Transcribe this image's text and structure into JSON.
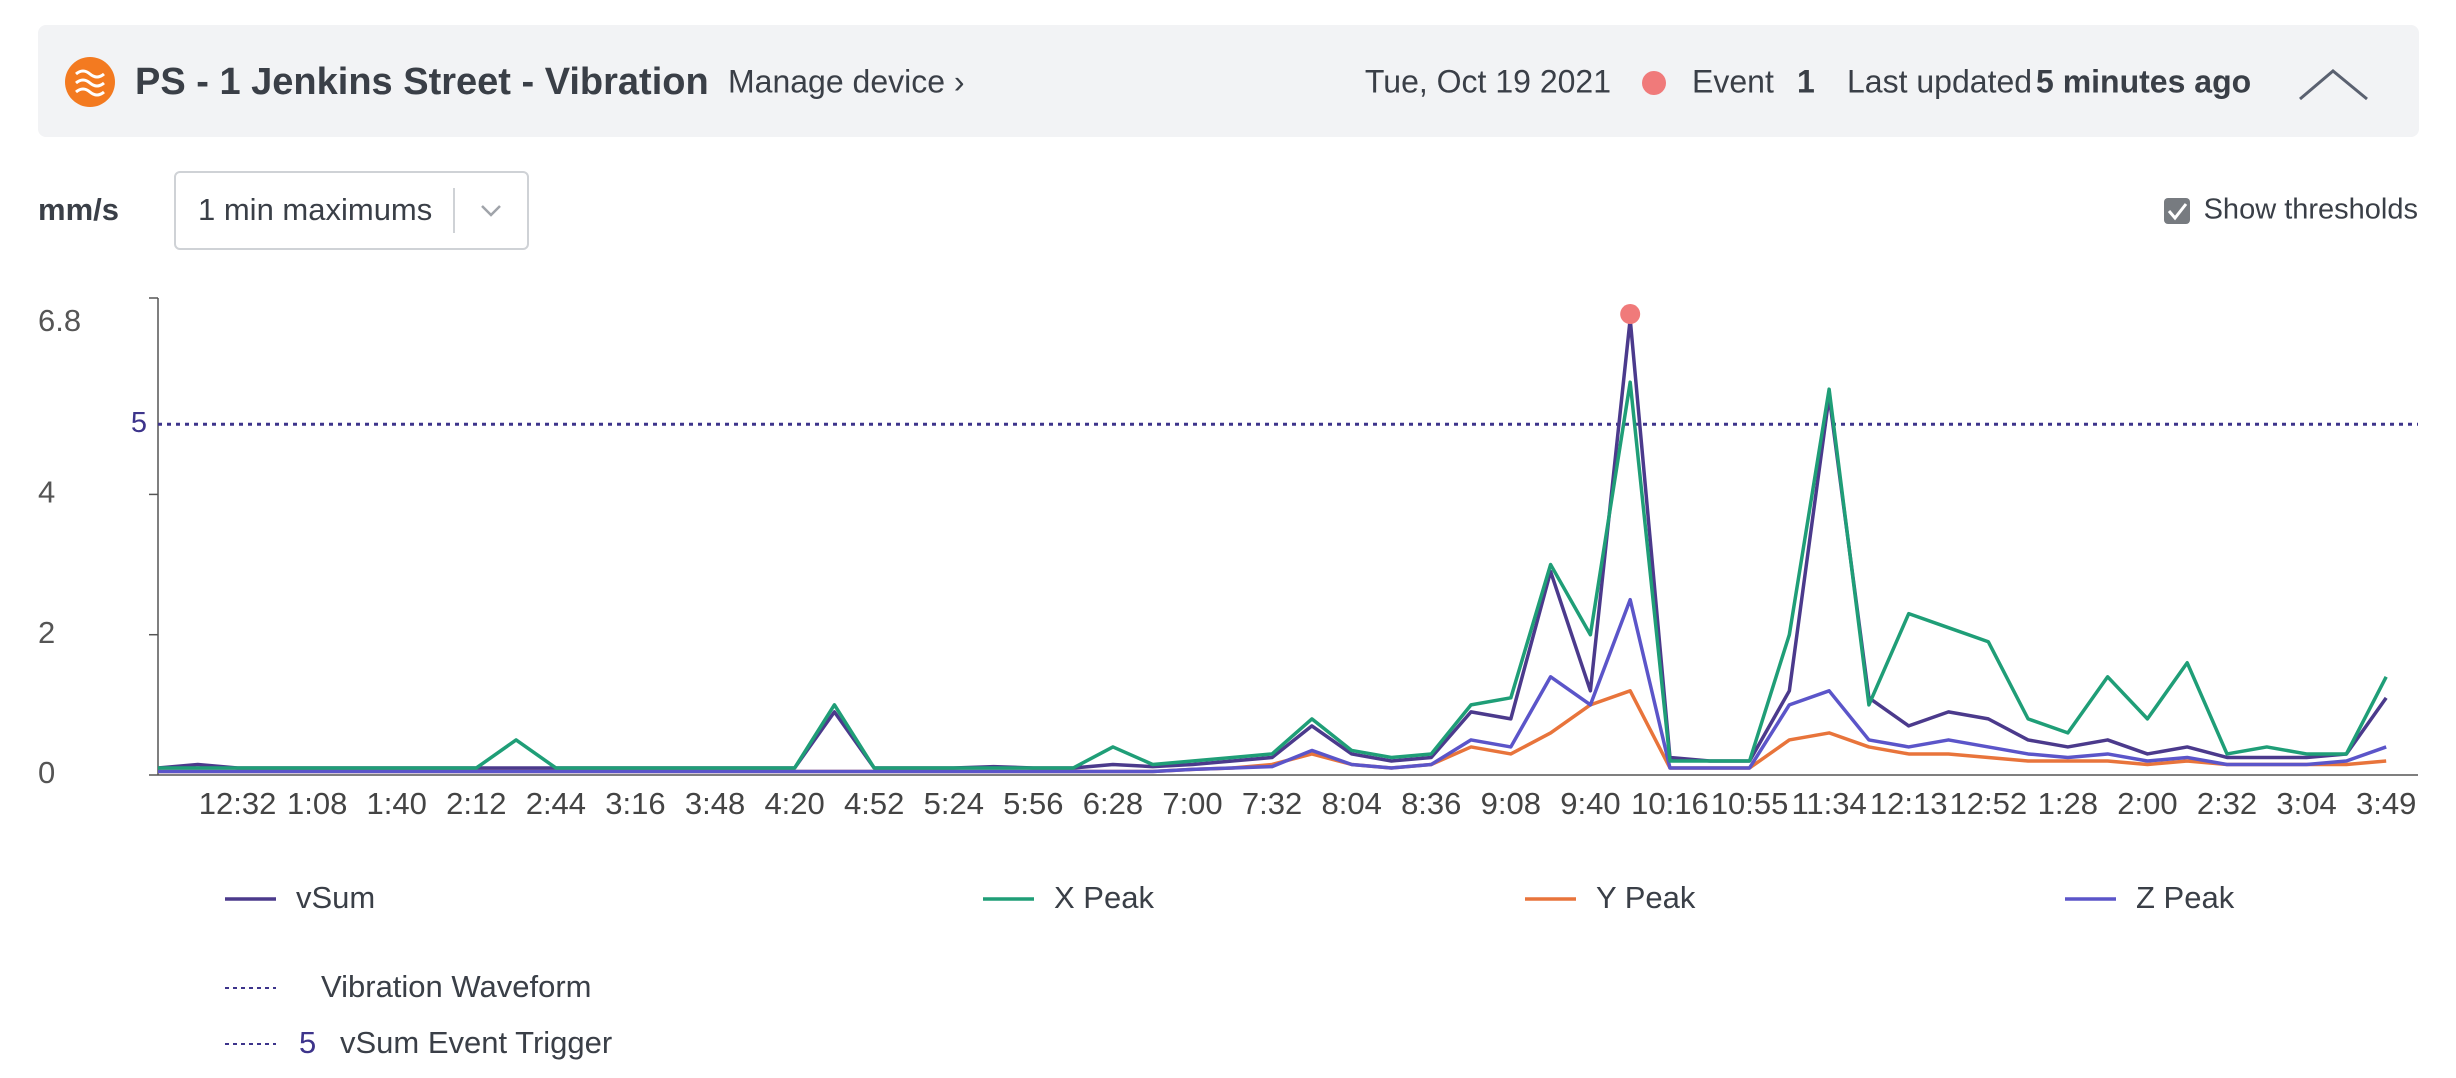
{
  "header": {
    "title": "PS - 1 Jenkins Street - Vibration",
    "link": "Manage device ›",
    "date": "Tue, Oct 19 2021",
    "event_label": "Event",
    "event_count": 1,
    "updated_label": "Last updated",
    "updated_value": "5 minutes ago"
  },
  "controls": {
    "unit": "mm/s",
    "select": "1 min maximums",
    "checkbox_label": "Show thresholds",
    "checked": true
  },
  "chart_data": {
    "type": "line",
    "categories": [
      null,
      null,
      "12:32",
      null,
      "1:08",
      null,
      "1:40",
      null,
      "2:12",
      null,
      "2:44",
      null,
      "3:16",
      null,
      "3:48",
      null,
      "4:20",
      null,
      "4:52",
      null,
      "5:24",
      null,
      "5:56",
      null,
      "6:28",
      null,
      "7:00",
      null,
      "7:32",
      null,
      "8:04",
      null,
      "8:36",
      null,
      "9:08",
      null,
      "9:40",
      null,
      "10:16",
      null,
      "10:55",
      null,
      "11:34",
      null,
      "12:13",
      null,
      "12:52",
      null,
      "1:28",
      null,
      "2:00",
      null,
      "2:32",
      null,
      "3:04",
      null,
      "3:49"
    ],
    "series": [
      {
        "name": "vSum",
        "color": "#4b3a8c",
        "values": [
          0.1,
          0.15,
          0.1,
          0.1,
          0.1,
          0.1,
          0.1,
          0.1,
          0.1,
          0.1,
          0.1,
          0.1,
          0.1,
          0.1,
          0.1,
          0.1,
          0.1,
          0.9,
          0.1,
          0.1,
          0.1,
          0.12,
          0.1,
          0.1,
          0.15,
          0.12,
          0.15,
          0.2,
          0.25,
          0.7,
          0.3,
          0.2,
          0.25,
          0.9,
          0.8,
          2.9,
          1.2,
          6.5,
          0.25,
          0.2,
          0.2,
          1.2,
          5.4,
          1.1,
          0.7,
          0.9,
          0.8,
          0.5,
          0.4,
          0.5,
          0.3,
          0.4,
          0.25,
          0.25,
          0.25,
          0.3,
          1.1
        ]
      },
      {
        "name": "X Peak",
        "color": "#1f9e77",
        "values": [
          0.1,
          0.1,
          0.1,
          0.1,
          0.1,
          0.1,
          0.1,
          0.1,
          0.1,
          0.5,
          0.1,
          0.1,
          0.1,
          0.1,
          0.1,
          0.1,
          0.1,
          1.0,
          0.1,
          0.1,
          0.1,
          0.1,
          0.1,
          0.1,
          0.4,
          0.15,
          0.2,
          0.25,
          0.3,
          0.8,
          0.35,
          0.25,
          0.3,
          1.0,
          1.1,
          3.0,
          2.0,
          5.6,
          0.2,
          0.2,
          0.2,
          2.0,
          5.5,
          1.0,
          2.3,
          2.1,
          1.9,
          0.8,
          0.6,
          1.4,
          0.8,
          1.6,
          0.3,
          0.4,
          0.3,
          0.3,
          1.4
        ]
      },
      {
        "name": "Y Peak",
        "color": "#e8743b",
        "values": [
          0.05,
          0.05,
          0.05,
          0.05,
          0.05,
          0.05,
          0.05,
          0.05,
          0.05,
          0.05,
          0.05,
          0.05,
          0.05,
          0.05,
          0.05,
          0.05,
          0.05,
          0.05,
          0.05,
          0.05,
          0.05,
          0.05,
          0.05,
          0.05,
          0.05,
          0.05,
          0.08,
          0.1,
          0.15,
          0.3,
          0.15,
          0.1,
          0.15,
          0.4,
          0.3,
          0.6,
          1.0,
          1.2,
          0.1,
          0.1,
          0.1,
          0.5,
          0.6,
          0.4,
          0.3,
          0.3,
          0.25,
          0.2,
          0.2,
          0.2,
          0.15,
          0.2,
          0.15,
          0.15,
          0.15,
          0.15,
          0.2
        ]
      },
      {
        "name": "Z Peak",
        "color": "#5b55c9",
        "values": [
          0.05,
          0.05,
          0.05,
          0.05,
          0.05,
          0.05,
          0.05,
          0.05,
          0.05,
          0.05,
          0.05,
          0.05,
          0.05,
          0.05,
          0.05,
          0.05,
          0.05,
          0.05,
          0.05,
          0.05,
          0.05,
          0.05,
          0.05,
          0.05,
          0.05,
          0.05,
          0.08,
          0.1,
          0.12,
          0.35,
          0.15,
          0.1,
          0.15,
          0.5,
          0.4,
          1.4,
          1.0,
          2.5,
          0.1,
          0.1,
          0.1,
          1.0,
          1.2,
          0.5,
          0.4,
          0.5,
          0.4,
          0.3,
          0.25,
          0.3,
          0.2,
          0.25,
          0.15,
          0.15,
          0.15,
          0.2,
          0.4
        ]
      }
    ],
    "ylim": [
      0,
      6.8
    ],
    "yticks": [
      0,
      2,
      4,
      6.8
    ],
    "threshold": {
      "value": 5,
      "name": "vSum Event Trigger",
      "color": "#3d348b"
    },
    "waveform_legend": "Vibration Waveform",
    "event_color": "#f07a7a"
  }
}
